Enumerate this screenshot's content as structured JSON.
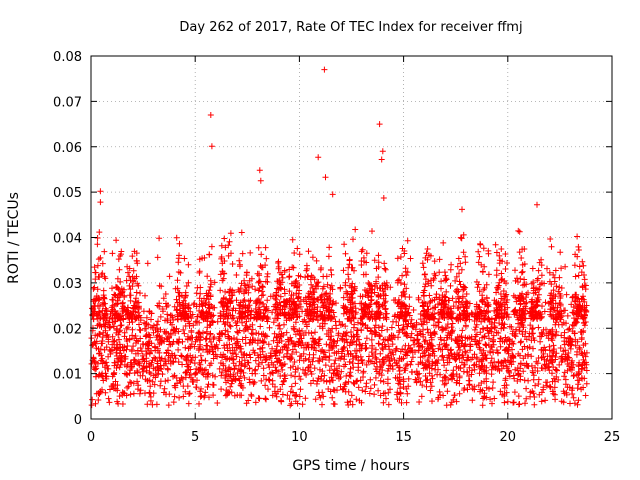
{
  "chart_data": {
    "type": "scatter",
    "title": "Day 262 of 2017, Rate Of TEC Index for receiver ffmj",
    "xlabel": "GPS time / hours",
    "ylabel": "ROTI / TECUs",
    "xlim": [
      0,
      25
    ],
    "ylim": [
      0,
      0.08
    ],
    "grid": true,
    "marker": "+",
    "series_color": "#ff0000",
    "x_ticks": [
      0,
      5,
      10,
      15,
      20,
      25
    ],
    "x_tick_labels": [
      "0",
      "5",
      "10",
      "15",
      "20",
      "25"
    ],
    "y_ticks": [
      0,
      0.01,
      0.02,
      0.03,
      0.04,
      0.05,
      0.06,
      0.07,
      0.08
    ],
    "y_tick_labels": [
      "0",
      "0.01",
      "0.02",
      "0.03",
      "0.04",
      "0.05",
      "0.06",
      "0.07",
      "0.08"
    ],
    "data_x_range": [
      0,
      23.8
    ],
    "typical_band": [
      0.005,
      0.025
    ],
    "outliers": [
      {
        "x": 0.45,
        "y": 0.0502
      },
      {
        "x": 0.45,
        "y": 0.0478
      },
      {
        "x": 0.4,
        "y": 0.0412
      },
      {
        "x": 5.75,
        "y": 0.067
      },
      {
        "x": 5.8,
        "y": 0.0601
      },
      {
        "x": 8.1,
        "y": 0.0548
      },
      {
        "x": 8.15,
        "y": 0.0525
      },
      {
        "x": 10.9,
        "y": 0.0577
      },
      {
        "x": 11.2,
        "y": 0.077
      },
      {
        "x": 11.25,
        "y": 0.0533
      },
      {
        "x": 11.6,
        "y": 0.0495
      },
      {
        "x": 13.85,
        "y": 0.065
      },
      {
        "x": 14.0,
        "y": 0.059
      },
      {
        "x": 13.95,
        "y": 0.0572
      },
      {
        "x": 14.05,
        "y": 0.0487
      },
      {
        "x": 17.8,
        "y": 0.0462
      },
      {
        "x": 21.4,
        "y": 0.0472
      }
    ]
  }
}
